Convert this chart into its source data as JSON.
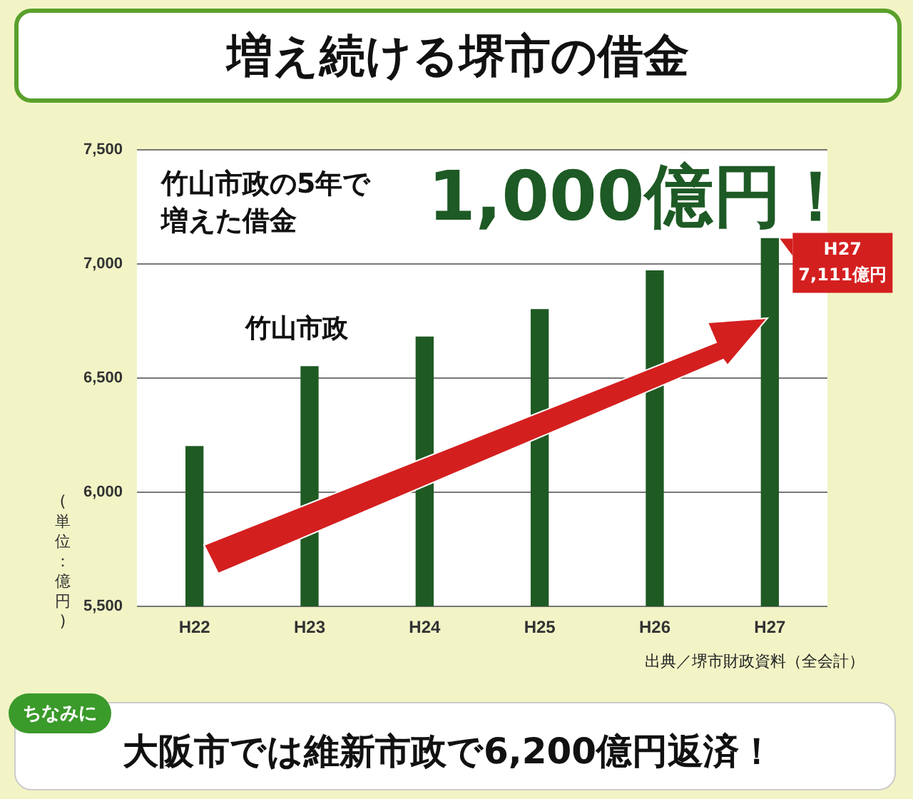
{
  "chart_data": {
    "type": "bar",
    "title": "増え続ける堺市の借金",
    "ylabel": "(単位：億円)",
    "categories": [
      "H22",
      "H23",
      "H24",
      "H25",
      "H26",
      "H27"
    ],
    "values": [
      6200,
      6550,
      6680,
      6800,
      6970,
      7111
    ],
    "color": "#1f5a23",
    "ylim": [
      5500,
      7500
    ],
    "yticks": [
      {
        "value": 5500,
        "label": "5,500"
      },
      {
        "value": 6000,
        "label": "6,000"
      },
      {
        "value": 6500,
        "label": "6,500"
      },
      {
        "value": 7000,
        "label": "7,000"
      },
      {
        "value": 7500,
        "label": "7,500"
      }
    ],
    "grid": "y",
    "legend": false,
    "annotations": [
      "竹山市政の5年で増えた借金",
      "1,000億円！",
      "竹山市政",
      {
        "text": "H27\n7,111億円",
        "x": "H27",
        "y": 7111
      },
      "出典／堺市財政資料（全会計）",
      "ちなみに",
      "大阪市では維新市政で6,200億円返済！"
    ]
  }
}
